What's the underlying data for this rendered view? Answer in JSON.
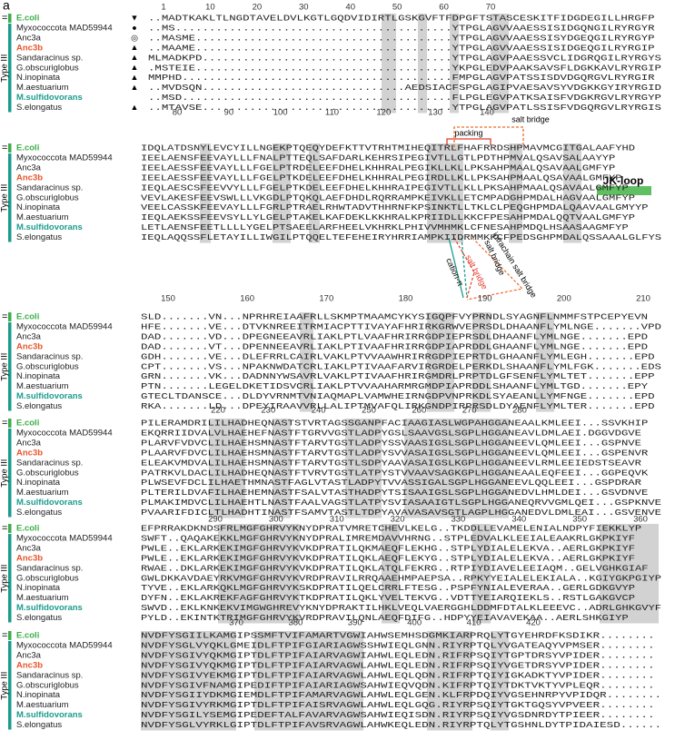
{
  "panel_label": "a",
  "ecoli_marker": "=",
  "group_label": "Type III",
  "species": [
    {
      "name": "E.coli",
      "color": "#3cae49",
      "bold": true
    },
    {
      "name": "Myxococcota MAD59944",
      "color": "#222222",
      "bold": false
    },
    {
      "name": "Anc3a",
      "color": "#222222",
      "bold": false
    },
    {
      "name": "Anc3b",
      "color": "#e8552b",
      "bold": true
    },
    {
      "name": "Sandaracinus sp.",
      "color": "#222222",
      "bold": false
    },
    {
      "name": "G.obscuriglobus",
      "color": "#222222",
      "bold": false
    },
    {
      "name": "N.inopinata",
      "color": "#222222",
      "bold": false
    },
    {
      "name": "M.aestuarium",
      "color": "#222222",
      "bold": false
    },
    {
      "name": "M.sulfidovorans",
      "color": "#1a9c8c",
      "bold": true
    },
    {
      "name": "S.elongatus",
      "color": "#222222",
      "bold": false
    }
  ],
  "markers": [
    "▼",
    "●",
    "◎",
    "▲",
    "▲",
    "▲",
    "▲",
    "▲",
    null,
    "▲"
  ],
  "blocks": [
    {
      "ruler": [
        1,
        10,
        20,
        30,
        40,
        50,
        60,
        70
      ],
      "rows": [
        "..MADTKAKLTLNGDTAVELDVLKGTLGQDVIDIRTLGSKGVFTFDPGFTSTASCESKITFIDGDEGILLHRGFP",
        "..MS.........................................YTPGLAGVVAAESSISIDGQNGILRYRGYR",
        "..MASME......................................YTPGLAGVVAAESSISYDGEQGILRYRGYP",
        "..MAAME......................................YTPGLAGVVAAESSISIDGEQGILRYRGIP",
        "MLMADKPD.....................................YTPGLAGVPAAESSVCLIDGRQGILRYRGYS",
        ".MSTEIE......................................YKPGLEDVPAAKSAVSFLDGKKAVLRYRGIP",
        "MMPHD........................................FMPGLAGVPATSSISDVDGQRGVLRYRGIR",
        "..MVDSQN..............................AEDSIACFSPGLAGIPVAESAVSYVDGKKGYIRYRGID",
        "..MSD........................................FLPGLEGVPATKSAISFVDGKRGVLRYRGYP",
        "..MTAVSE.....................................YTPGLAGVPATLSSISFVDGQRGVLRYRGIS"
      ]
    },
    {
      "ruler": [
        80,
        90,
        100,
        110,
        120,
        130,
        140
      ],
      "rows": [
        "IDQLATDSNYLEVCYILLNGEKPTQEQYDEFKTTVTRHTMIHEQITRLFHAFRRDSHPMAVMCGITGALAAFYHD",
        "IEELAENSFEEVAYLLLFNALPTTEQLSAFDARLKEHRSIPEGIVTLLGTLPDTHPMVALQSAVSALAAYYP",
        "IEELAESSFEEVAYLLLFGELPTRDELEEFDHELKHHRALPEGIKLLKLLPKSAHPMAALQSAVAALGMFYP",
        "IEELAESSFEEVAYLLLFGELPTKDELEEFDHELKHHRALPEGIRDLLKLLPKSAHPMAALQSAVAALGMFYP",
        "IEQLAESCSFEEVVYLLLFGELPTKDELEEFDHELKHHRAIPEGIVTLLKLLPKSAHPMAALQSAVAALGMFYP",
        "VEVLAKESFEEVSWLLLVKGDLPTQKQLAEFDHDLRQRRAMPKEIVKLLETCMPADGHPMDALHAGVAALGMFYP",
        "VEELCASSKFEEVAYLLLFGRLPTRAELRHWTADVTHHRNFKPSINKTLLTKLCLPEQGHPMDALQAAVAALGMYYP",
        "IEQLAEKSSFEEVSYLLYLGELPTAKELKAFDEKLKKHRALKPRIIDLLKKCFPESAHPMDALQQTVAALGMFYP",
        "LETLAENSFEETLLLLYGELPTSAEELARFHEELVKHRKLPHIVVMHMKLCFNESAHPMDQLHSAASAAGMFYP",
        "IEQLAQQSSFLETAYILLIWGILPTQQELTEFEHEIRYHRRIAMPKIIDRMMKKCFPEDSGHPMDALQSSAAALGLFYS"
      ]
    },
    {
      "ruler": [
        150,
        160,
        170,
        180,
        190,
        200,
        210
      ],
      "rows": [
        "SLD.......VN...NPRHREIAAFRLLSKMPTMAAMCYKYSIGQPFVYPRNDLSYAGNFLNMMFSTPCEPYEVN",
        "HFE.......VE...DTVKNREEITRMIACPTTIVAYAFHRIRKGRWVEPRSDLDHAANFLYMLNGE.......VPD",
        "DAD.......VD...DPEGNEEAVRLIAKLPTLVAAFHRIRRGDPIEPRSDLDHAANFLYMLNGE.......EPD",
        "DAD.......VT...DPENNEEAVRLIAKLPTIVAAFHRIRRGDPIAPRDDLGHAANFLYMLNGE.......EPD",
        "GDH.......VE...DLEFRRLCAIRLVAKLPTVVAAWHRIRRGDPIEPRTDLGHAANFLYMLEGH.......EPD",
        "CPT.......VS...NPAKNWDATCRLIAKLPTIVAAFARVIRGRDELPERKDLSHAANFLYMLFGK.......EDS",
        "GRN.......VK...DADNNYWSAVRLVAKLPTIVAAFHRIRGMDRLPRPTDLGFSENFLYMLTET.......EPP",
        "PTN.......LEGELDKETIDSVCRLIAKLPTVVAAHARMRGMDPIAPRDDLSHAANFLYMLTGD.......EPY",
        "GTECLTDANSCE...DLDYVRNMTVNIAQMAPLVAMWHEIRNGDPVNPRKDLSYAEANLLYMFNGE.......EPD",
        "RKA.......LD...DPEYIRAAVVRLLALIPTMVAFQLIRKGNDPIRPRSDLDYAENFLYMLTER.......EPD"
      ]
    },
    {
      "ruler": [
        220,
        230,
        240,
        250,
        260,
        270,
        280
      ],
      "rows": [
        "PILERAMDRILILHADHEQNASTSTVRTAGSSGANPFACIAAGIASLWGPAHGGANEAALKMLEEI...SSVKHIP",
        "EKQRRIIDVALVLHAEHEFNASTFTGRVVGSTLADPYGSLSAAVGSLSGPLHGGANEAVLDMLAEI.DGGVDGVE",
        "PLARVFVDVCLILHAEHSMNASTFTARVTGSTLADPYSSVAASIGSLSGPLHGGANEEVLQMLEEI...GSPNVE",
        "PLAARVFDVCLILHAEHSMNASTFTARVTGSTLADPYSVVASAIGSLSGPLHGGANEEVLQMLEEI...GSPENVR",
        "ELEAKVMDVALILHAEHSMNASTFTARVTGSTLSDPYAAVASAIGSLKGPLHGGANEEVLRMLEEIEDSTSEAVR",
        "PATRKVLDACLILHADHEQNASTFTVRVTGSTLATPYSTVVAAVSAGKGPLHGGANEAALEQFEEI...GGPEQVK",
        "PLWSEVFDCLILHAETHMNASTFAGLVTASTLADPYTVVASSIGALSGPLHGGANEEVLQQLEEI...GSPDRAR",
        "PLTERILDVAFILHAEHEMNASTFSALVTASTHADPYTSISAAIGSLSGPLHGGANEDVLHMLDEI...GSVDNVE",
        "PLMAKIMDVCLILHAEHTLNASTFAALVAGSTLATPYSVIASAAIGTLSGPLHGGANEQRVVGMLQEI...GSPKNVE",
        "PVAARIFDICLTLHADHTINASTFSAMVTASTLTDPYAVAVASAVSGTLAGPLHGGANEDVLDMLEAI...GSVENVE"
      ]
    },
    {
      "ruler": [
        290,
        300,
        310,
        320,
        330,
        340,
        350,
        360
      ],
      "rows": [
        "EFPRRAKDKNDSFRLMGFGHRVYKNYDPRATVMRETCHEVLKELG..TKDDLLEVAMELENIALNDPYFIEKKLYP",
        "SWFT..QAQAKEKKLMGFGHRVYKNYDPRALIMREMDAVVHRNG..STPLEDVALKLEEIALEAAKRLGKPKIYF",
        "PWLE..EKLARKEKIMGFGHRVYKVKDPRATILQKMAEQFLEKHG..STPLYDIALELEKVA..AERLGKPKIYF",
        "PWLE..EKLARKEKIMGFGHRVYKVKDPRATILQKLAEQFLEKYG..STPLYDIALELEKVA..AERLGKPKIYF",
        "RWAE..DKLARKEKIMGFGHRVYKVKDPRATILQKLATQLFEKRG..RTPIYDIAVELEEIAQM..GELVGHKGIAF",
        "GWLDKKAVDAEYRKVMGFGHRVYKVRDPRAVILRRQAAEHMPAEPSA..RPKYYEIALELEKIALA..KGIYGKPGIYP",
        "TYVE..EKLARKQKLMGFGHRVYKSKDPRATILQELCRRLFTESG..PSPFYNIALEVERAA..GERLGDKGVYP",
        "DYFN..EKLAKREKFAGFGHRVYKTKDPRATILQKLYVELTEKVG..VDTTYEIARQIEKLS..RSTLGAKGVCP",
        "SWVD..EKLKNKEKVIMGWGHREVYKNYDPRAKTILHKLVEQLVAERGGHLDDMFDTALKLEEEVC..ADRLGHKGVYF",
        "PYLD..EKINTKTRIMGFGHRVYKVRDPRAVILQNLAEQFDIFG..HDPYYEIAVAVEKAA..AERLSHKGIYP"
      ]
    },
    {
      "ruler": [
        370,
        380,
        390,
        400,
        410,
        420
      ],
      "rows": [
        "NVDFYSGIILKAMGIPSSMFTVIFAMARTVGWIAHWSEMHSDGMKIARPRQLYTGYEHRDFKSDIKR........",
        "NVDFYSGLVYQKLGMEIDLFTPIFGIARIAGWSSHWIEQLGNN.RIYRPTQLYVGATEAQYVPMSER........",
        "NVDFYSGIVYQKMGIPTDLFTPIFAIARVAGWIAHWLEQLEDN.RIFRPSQIYTGPTDRSYVPIDER........",
        "NVDFYSGIVYQKMGIPTDLFTPIFAIARVAGWLAHWLEQLEDN.RIFRPSQIYVGETDRSYVPIDER........",
        "NVDFYSGIVYEKMGIPTDLFTPIFAIARVAGWLAHWLEQLQDN.RIFRPTQIYIGKADKTYVPIDER........",
        "NVDFYSGIVFNAMGIPEDIFTPIFAIARIAGWSAHWIEQVQDN.KIFRPTQIYTDKTVKTYVPLEQR........",
        "NVDFYSGIIYDKMGIEMDLFTPIFAMARVAGWLAHWLEQLGEN.KLFRPDQIYVGSEHNRPYVPIDQR........",
        "NVDFYSGIVYRKMGIPTDLFTPIFAISRVAGWLAHWLEQLGQG.RIYRPSQIYTGKTGQSYVPVEER........",
        "NVDFYSGILYSEMGIPEDEFTALFAVARVAGWSAHWIEQISDN.RIYRPSQIYVGSDNRDYTPIEER........",
        "NVDFYSGLVYRKLGIPTDLFTPIFAVSRVAGWLAHWKEQLEDN.RIYRPTQLYTGSHNLDYTPIDAIESD......"
      ]
    }
  ],
  "annotations": {
    "jk_loop": "JK-loop",
    "packing": "packing",
    "salt_bridge_top": "salt bridge",
    "cation_pi": "cation-π",
    "salt_bridge_red": "salt bridge",
    "salt_bridge_black": "salt bridge",
    "intrachain": "intrachain salt bridge"
  }
}
